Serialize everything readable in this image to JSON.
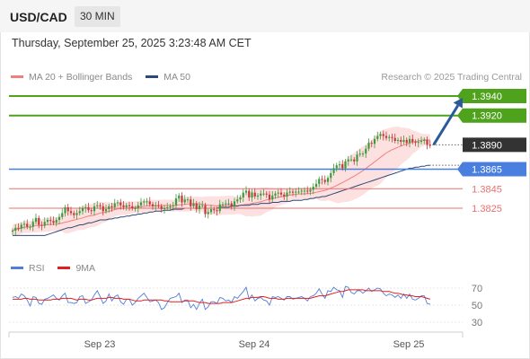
{
  "header": {
    "symbol": "USD/CAD",
    "timeframe": "30 MIN"
  },
  "timestamp": "Thursday, September 25, 2025 3:23:48 AM CET",
  "legend": {
    "ma20_label": "MA 20 + Bollinger Bands",
    "ma50_label": "MA 50",
    "ma20_color": "#f08080",
    "ma50_color": "#2b4a7a"
  },
  "credit": "Research © 2025 Trading Central",
  "rsi_legend": {
    "rsi_label": "RSI",
    "ma_label": "9MA",
    "rsi_color": "#4f7fd8",
    "ma_color": "#e02020"
  },
  "colors": {
    "resistance": "#4fa31c",
    "current": "#333333",
    "pivot": "#4a7fe0",
    "support": "#e87070",
    "bull": "#3d9a3d",
    "bear": "#c23a3a",
    "arrow": "#2a5a9a",
    "band_fill": "#fde0e0"
  },
  "chart_data": {
    "type": "candlestick",
    "x_ticks": [
      "Sep 23",
      "Sep 24",
      "Sep 25"
    ],
    "levels": [
      {
        "value": 1.394,
        "label": "1.3940",
        "kind": "resistance"
      },
      {
        "value": 1.392,
        "label": "1.3920",
        "kind": "resistance"
      },
      {
        "value": 1.389,
        "label": "1.3890",
        "kind": "current"
      },
      {
        "value": 1.3865,
        "label": "1.3865",
        "kind": "pivot"
      },
      {
        "value": 1.3845,
        "label": "1.3845",
        "kind": "support"
      },
      {
        "value": 1.3825,
        "label": "1.3825",
        "kind": "support"
      }
    ],
    "close": [
      1.3802,
      1.3805,
      1.3804,
      1.3808,
      1.3809,
      1.3806,
      1.3806,
      1.3811,
      1.3815,
      1.3808,
      1.3807,
      1.3811,
      1.3813,
      1.3812,
      1.381,
      1.3813,
      1.3816,
      1.382,
      1.3826,
      1.3822,
      1.382,
      1.3818,
      1.382,
      1.3822,
      1.3825,
      1.3826,
      1.3823,
      1.3822,
      1.3827,
      1.3828,
      1.3827,
      1.3822,
      1.3824,
      1.3827,
      1.3826,
      1.383,
      1.3831,
      1.3828,
      1.3826,
      1.3828,
      1.3827,
      1.3825,
      1.3825,
      1.3828,
      1.3831,
      1.3832,
      1.3832,
      1.3829,
      1.3827,
      1.3828,
      1.3827,
      1.3824,
      1.3825,
      1.3826,
      1.3827,
      1.3828,
      1.3835,
      1.3838,
      1.3831,
      1.3834,
      1.3834,
      1.3827,
      1.383,
      1.3824,
      1.3828,
      1.3828,
      1.3819,
      1.3821,
      1.3824,
      1.3823,
      1.3822,
      1.3829,
      1.3829,
      1.383,
      1.383,
      1.3827,
      1.3832,
      1.3834,
      1.3836,
      1.3841,
      1.3843,
      1.3836,
      1.3841,
      1.3837,
      1.3838,
      1.384,
      1.384,
      1.3839,
      1.3834,
      1.3838,
      1.384,
      1.3841,
      1.3839,
      1.3837,
      1.3841,
      1.3842,
      1.3841,
      1.3842,
      1.3842,
      1.3843,
      1.3843,
      1.3842,
      1.3844,
      1.3847,
      1.385,
      1.3855,
      1.3854,
      1.3852,
      1.3856,
      1.3861,
      1.3866,
      1.3869,
      1.387,
      1.3866,
      1.3873,
      1.3875,
      1.3875,
      1.3873,
      1.388,
      1.3881,
      1.3881,
      1.3886,
      1.3892,
      1.3891,
      1.3896,
      1.3899,
      1.3901,
      1.3899,
      1.3897,
      1.3898,
      1.3897,
      1.3894,
      1.3895,
      1.3893,
      1.3895,
      1.3892,
      1.3896,
      1.3893,
      1.3892,
      1.3893,
      1.3894,
      1.3895,
      1.389,
      1.3889
    ],
    "ma50": [
      1.3797,
      1.3797,
      1.3797,
      1.3797,
      1.3797,
      1.3797,
      1.3797,
      1.3797,
      1.3797,
      1.3797,
      1.3797,
      1.3797,
      1.3798,
      1.3799,
      1.38,
      1.3801,
      1.3802,
      1.3803,
      1.3804,
      1.3805,
      1.3805,
      1.3806,
      1.3807,
      1.3808,
      1.3808,
      1.3809,
      1.381,
      1.381,
      1.3811,
      1.3812,
      1.3813,
      1.3813,
      1.3813,
      1.3814,
      1.3814,
      1.3815,
      1.3815,
      1.3816,
      1.3816,
      1.3817,
      1.3817,
      1.3818,
      1.3818,
      1.3819,
      1.3819,
      1.382,
      1.382,
      1.3821,
      1.3821,
      1.3822,
      1.3822,
      1.3822,
      1.3823,
      1.3823,
      1.3823,
      1.3824,
      1.3824,
      1.3824,
      1.3824,
      1.3825,
      1.3825,
      1.3825,
      1.3825,
      1.3825,
      1.3825,
      1.3825,
      1.3825,
      1.3825,
      1.3825,
      1.3825,
      1.3825,
      1.3826,
      1.3826,
      1.3826,
      1.3826,
      1.3827,
      1.3827,
      1.3827,
      1.3828,
      1.3828,
      1.3828,
      1.3828,
      1.3829,
      1.3829,
      1.3829,
      1.383,
      1.383,
      1.383,
      1.383,
      1.3831,
      1.3831,
      1.3831,
      1.3832,
      1.3832,
      1.3832,
      1.3832,
      1.3833,
      1.3833,
      1.3833,
      1.3833,
      1.3834,
      1.3834,
      1.3835,
      1.3835,
      1.3836,
      1.3836,
      1.3837,
      1.3837,
      1.3838,
      1.3839,
      1.384,
      1.3841,
      1.3842,
      1.3843,
      1.3844,
      1.3845,
      1.3846,
      1.3847,
      1.3848,
      1.3849,
      1.385,
      1.3851,
      1.3852,
      1.3853,
      1.3854,
      1.3855,
      1.3856,
      1.3857,
      1.3858,
      1.3859,
      1.386,
      1.3861,
      1.3862,
      1.3863,
      1.3864,
      1.3865,
      1.3866,
      1.3866,
      1.3867,
      1.3867,
      1.3868,
      1.3868,
      1.3869,
      1.3869
    ],
    "rsi": [
      59,
      60,
      58,
      63,
      61,
      56,
      49,
      60,
      59,
      52,
      51,
      57,
      58,
      60,
      62,
      58,
      56,
      61,
      64,
      53,
      53,
      52,
      53,
      60,
      61,
      52,
      54,
      56,
      62,
      67,
      60,
      52,
      55,
      63,
      55,
      60,
      62,
      54,
      51,
      57,
      57,
      50,
      53,
      58,
      61,
      64,
      59,
      54,
      55,
      56,
      53,
      45,
      47,
      53,
      58,
      59,
      60,
      64,
      53,
      56,
      56,
      47,
      51,
      45,
      52,
      57,
      45,
      48,
      54,
      54,
      52,
      59,
      58,
      55,
      56,
      53,
      60,
      58,
      62,
      66,
      71,
      57,
      62,
      55,
      58,
      59,
      56,
      55,
      50,
      60,
      59,
      60,
      58,
      56,
      60,
      60,
      57,
      58,
      59,
      60,
      58,
      55,
      60,
      61,
      64,
      69,
      63,
      58,
      67,
      66,
      71,
      68,
      67,
      59,
      72,
      71,
      65,
      63,
      67,
      67,
      64,
      67,
      70,
      66,
      68,
      70,
      69,
      64,
      61,
      63,
      62,
      59,
      62,
      58,
      63,
      58,
      63,
      57,
      56,
      58,
      61,
      61,
      52,
      51
    ],
    "rsi_ma": [
      57,
      57,
      57,
      57,
      58,
      58,
      57,
      57,
      57,
      56,
      56,
      56,
      56,
      56,
      57,
      57,
      57,
      58,
      58,
      58,
      58,
      57,
      56,
      57,
      57,
      57,
      56,
      56,
      57,
      58,
      58,
      58,
      58,
      59,
      59,
      58,
      58,
      58,
      57,
      57,
      57,
      56,
      55,
      55,
      55,
      56,
      56,
      56,
      56,
      56,
      56,
      56,
      55,
      55,
      54,
      54,
      54,
      54,
      54,
      55,
      55,
      55,
      55,
      54,
      53,
      53,
      53,
      52,
      52,
      52,
      52,
      52,
      53,
      53,
      53,
      53,
      54,
      55,
      56,
      57,
      58,
      58,
      59,
      59,
      59,
      60,
      60,
      59,
      58,
      58,
      58,
      57,
      57,
      57,
      58,
      58,
      58,
      58,
      58,
      58,
      58,
      58,
      58,
      59,
      60,
      61,
      61,
      61,
      62,
      63,
      64,
      65,
      66,
      66,
      67,
      68,
      68,
      68,
      68,
      68,
      68,
      67,
      67,
      67,
      67,
      67,
      67,
      66,
      66,
      66,
      65,
      64,
      64,
      63,
      62,
      62,
      61,
      61,
      60,
      60,
      60,
      59,
      58,
      57
    ],
    "rsi_ticks": [
      70,
      50,
      30
    ],
    "rsi_range": [
      20,
      80
    ],
    "forecast_arrow": {
      "from": 1.389,
      "to": 1.394
    }
  }
}
